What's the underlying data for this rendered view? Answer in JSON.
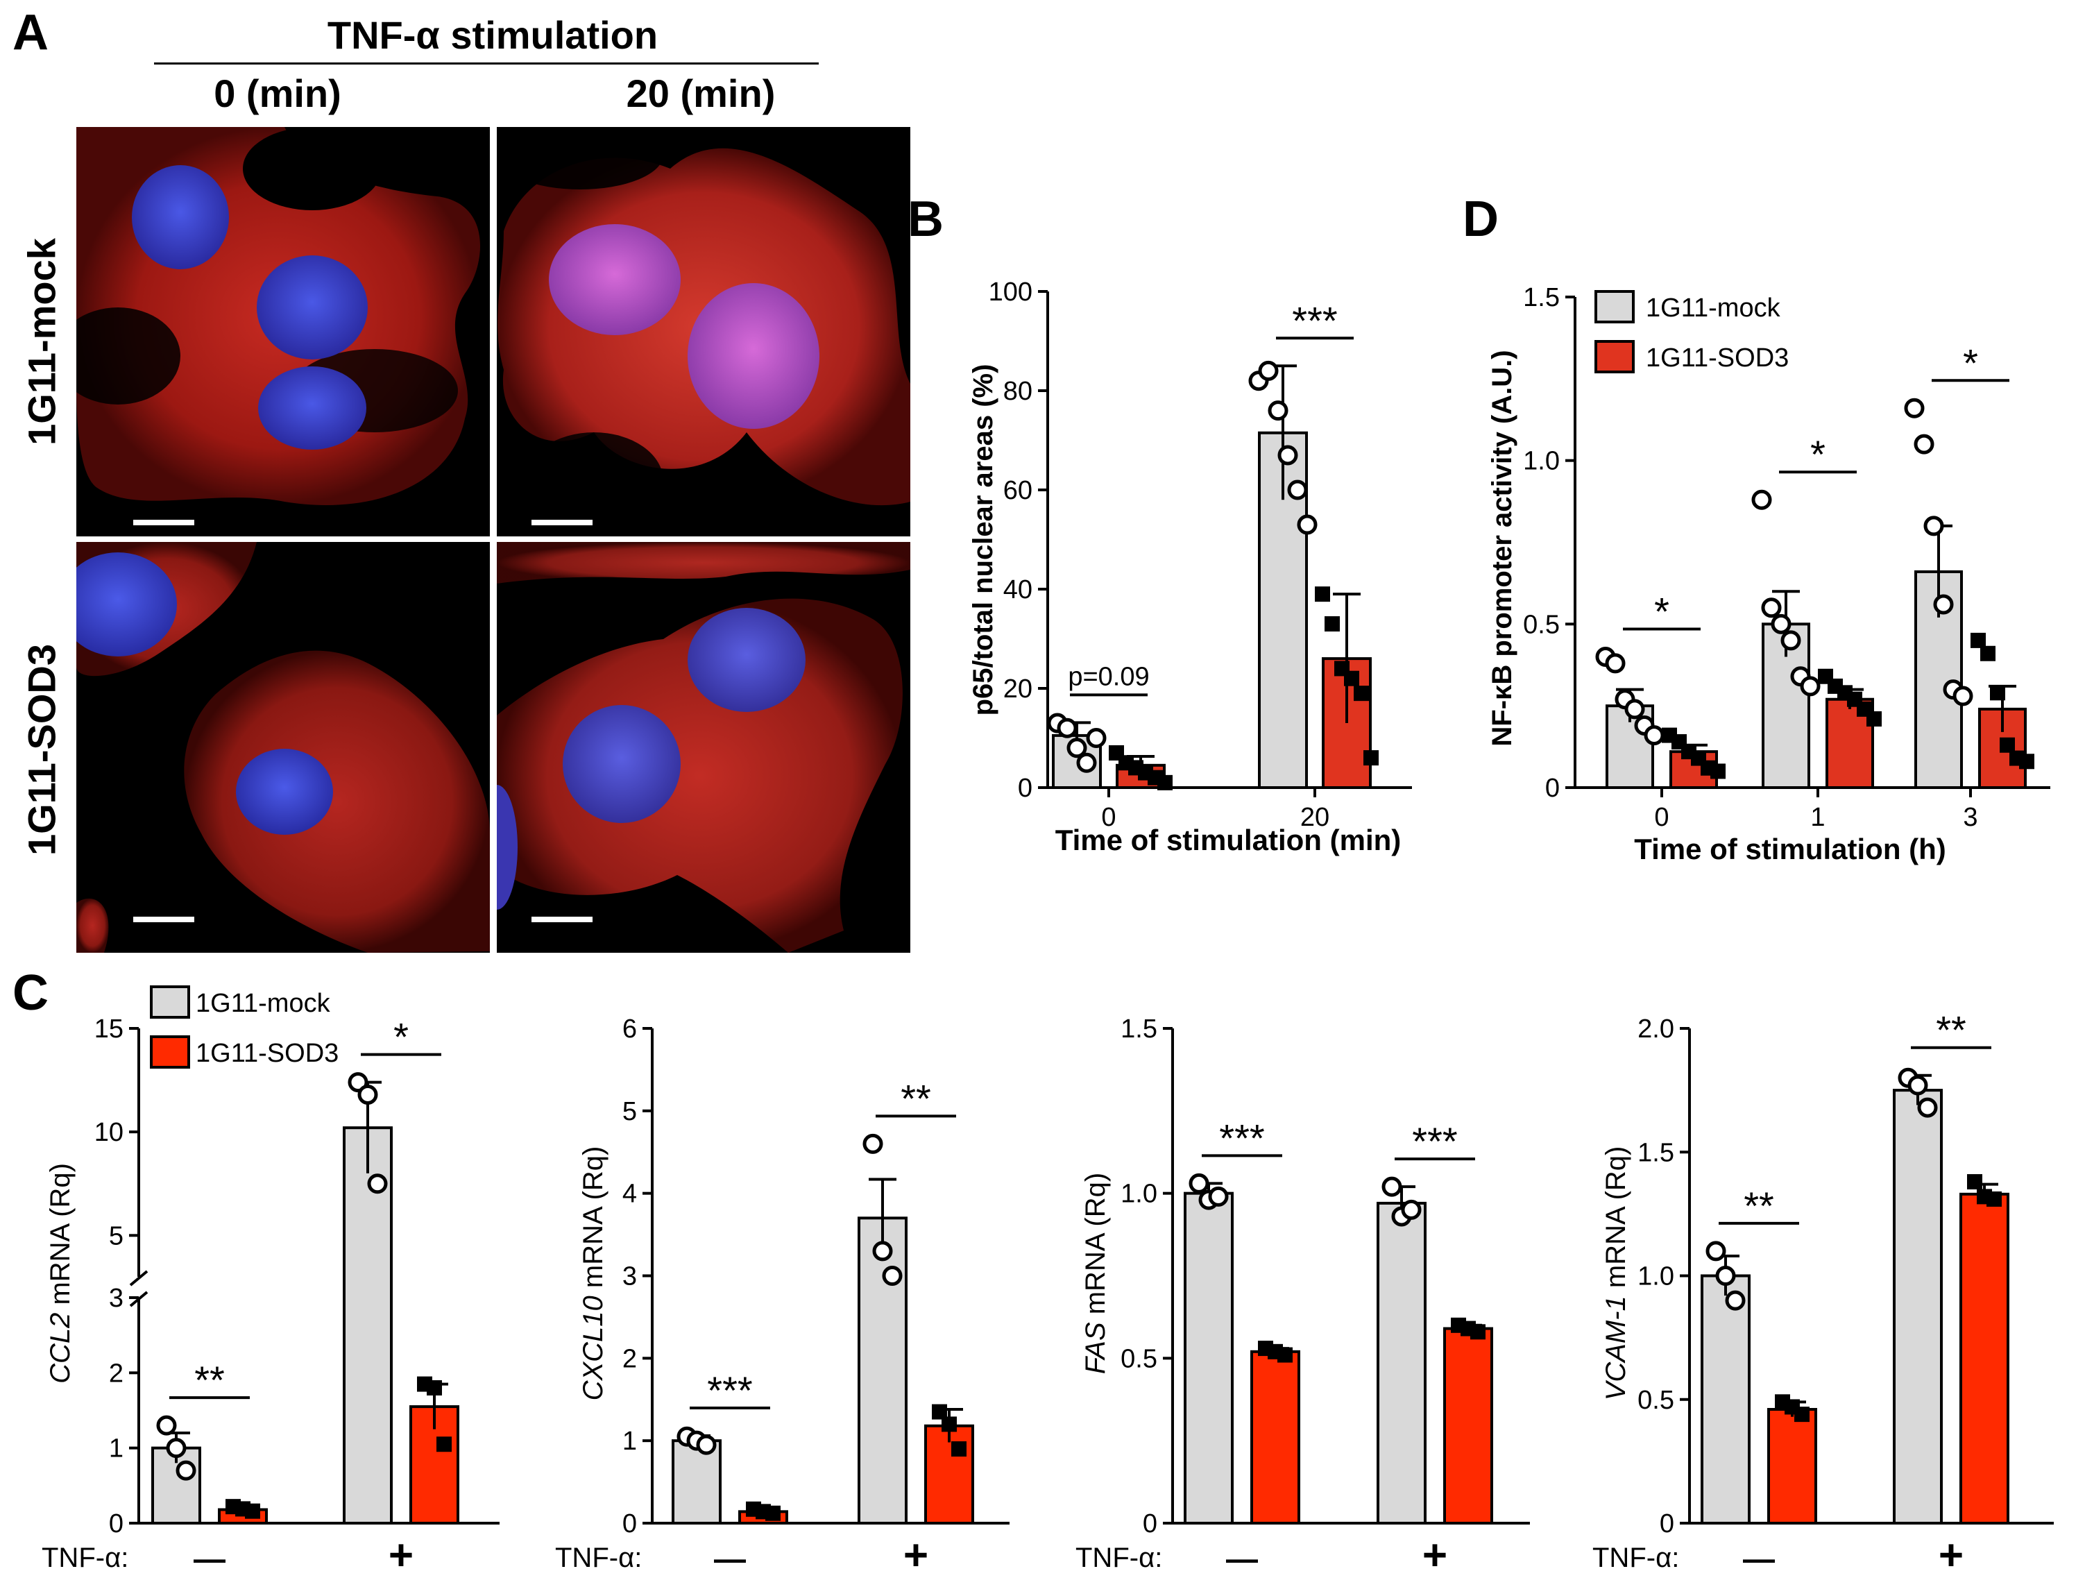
{
  "panel_a": {
    "letter": "A",
    "stim_header": "TNF-α stimulation",
    "col0": "0 (min)",
    "col20": "20 (min)",
    "row_mock": "1G11-mock",
    "row_sod3": "1G11-SOD3",
    "colors": {
      "cytoplasm": "#c0201c",
      "nucleus": "#3a3ec8",
      "background": "#000000"
    }
  },
  "legend": {
    "mock": "1G11-mock",
    "sod3": "1G11-SOD3"
  },
  "colors": {
    "mock": "#d9d9d9",
    "sod3_b": "#e0341f",
    "sod3": "#ff2a00"
  },
  "chart_data": [
    {
      "id": "B",
      "letter": "B",
      "type": "bar",
      "ylabel": "p65/total nuclear areas (%)",
      "xlabel": "Time of stimulation (min)",
      "categories": [
        "0",
        "20"
      ],
      "ylim": [
        0,
        100
      ],
      "yticks": [
        "0",
        "20",
        "40",
        "60",
        "80",
        "100"
      ],
      "series": [
        {
          "group": "mock",
          "marker": "circle",
          "values": [
            10.5,
            71.5
          ],
          "err": [
            2.6,
            13.5
          ],
          "points": [
            [
              13,
              12,
              8,
              5,
              10
            ],
            [
              82,
              84,
              76,
              67,
              60,
              53
            ]
          ]
        },
        {
          "group": "sod3",
          "marker": "square",
          "values": [
            4.5,
            26
          ],
          "err": [
            1.8,
            13
          ],
          "points": [
            [
              7,
              5,
              4,
              3,
              2,
              1
            ],
            [
              39,
              33,
              24,
              22,
              19,
              6
            ]
          ]
        }
      ],
      "significance": [
        {
          "label": "p=0.09",
          "category": 0
        },
        {
          "label": "***",
          "category": 1
        }
      ]
    },
    {
      "id": "D",
      "letter": "D",
      "type": "bar",
      "ylabel": "NF-κB promoter activity (A.U.)",
      "xlabel": "Time of stimulation (h)",
      "categories": [
        "0",
        "1",
        "3"
      ],
      "ylim": [
        0,
        1.5
      ],
      "yticks": [
        "0",
        "0.5",
        "1.0",
        "1.5"
      ],
      "legend_position": "top-left",
      "series": [
        {
          "group": "mock",
          "marker": "circle",
          "values": [
            0.25,
            0.5,
            0.66
          ],
          "err": [
            0.05,
            0.1,
            0.14
          ],
          "points": [
            [
              0.4,
              0.38,
              0.27,
              0.24,
              0.19,
              0.16
            ],
            [
              0.88,
              0.55,
              0.5,
              0.45,
              0.34,
              0.31
            ],
            [
              1.16,
              1.05,
              0.8,
              0.56,
              0.3,
              0.28
            ]
          ]
        },
        {
          "group": "sod3",
          "marker": "square",
          "values": [
            0.11,
            0.27,
            0.24
          ],
          "err": [
            0.02,
            0.03,
            0.07
          ],
          "points": [
            [
              0.16,
              0.14,
              0.11,
              0.09,
              0.06,
              0.05
            ],
            [
              0.34,
              0.31,
              0.29,
              0.27,
              0.24,
              0.21
            ],
            [
              0.45,
              0.41,
              0.29,
              0.13,
              0.09,
              0.08
            ]
          ]
        }
      ],
      "significance": [
        {
          "label": "*",
          "category": 0
        },
        {
          "label": "*",
          "category": 1
        },
        {
          "label": "*",
          "category": 2
        }
      ]
    },
    {
      "id": "C1",
      "letter": "C",
      "type": "bar",
      "ylabel_gene": "CCL2",
      "ylabel_rest": " mRNA (Rq)",
      "x_prefix": "TNF-α:",
      "categories": [
        "—",
        "+"
      ],
      "axis_break": true,
      "break_lower": [
        0,
        3
      ],
      "break_upper": [
        3,
        15
      ],
      "yticks_lower": [
        "0",
        "1",
        "2",
        "3"
      ],
      "yticks_upper": [
        "5",
        "10",
        "15"
      ],
      "legend_position": "top-left",
      "series": [
        {
          "group": "mock",
          "marker": "circle",
          "values": [
            1.0,
            10.2
          ],
          "err": [
            0.2,
            2.2
          ],
          "points": [
            [
              1.3,
              1.0,
              0.7
            ],
            [
              12.4,
              11.8,
              7.5
            ]
          ]
        },
        {
          "group": "sod3",
          "marker": "square",
          "values": [
            0.18,
            1.55
          ],
          "err": [
            0.03,
            0.3
          ],
          "points": [
            [
              0.22,
              0.19,
              0.16
            ],
            [
              1.85,
              1.8,
              1.05
            ]
          ]
        }
      ],
      "significance": [
        {
          "label": "**",
          "category": 0
        },
        {
          "label": "*",
          "category": 1
        }
      ]
    },
    {
      "id": "C2",
      "type": "bar",
      "ylabel_gene": "CXCL10",
      "ylabel_rest": " mRNA (Rq)",
      "x_prefix": "TNF-α:",
      "categories": [
        "—",
        "+"
      ],
      "ylim": [
        0,
        6
      ],
      "yticks": [
        "0",
        "1",
        "2",
        "3",
        "4",
        "5",
        "6"
      ],
      "series": [
        {
          "group": "mock",
          "marker": "circle",
          "values": [
            1.0,
            3.7
          ],
          "err": [
            0.06,
            0.47
          ],
          "points": [
            [
              1.05,
              1.0,
              0.95
            ],
            [
              4.6,
              3.3,
              3.0
            ]
          ]
        },
        {
          "group": "sod3",
          "marker": "square",
          "values": [
            0.14,
            1.18
          ],
          "err": [
            0.03,
            0.2
          ],
          "points": [
            [
              0.17,
              0.14,
              0.12
            ],
            [
              1.35,
              1.2,
              0.9
            ]
          ]
        }
      ],
      "significance": [
        {
          "label": "***",
          "category": 0
        },
        {
          "label": "**",
          "category": 1
        }
      ]
    },
    {
      "id": "C3",
      "type": "bar",
      "ylabel_gene": "FAS",
      "ylabel_rest": " mRNA (Rq)",
      "x_prefix": "TNF-α:",
      "categories": [
        "—",
        "+"
      ],
      "ylim": [
        0,
        1.5
      ],
      "yticks": [
        "0",
        "0.5",
        "1.0",
        "1.5"
      ],
      "series": [
        {
          "group": "mock",
          "marker": "circle",
          "values": [
            1.0,
            0.97
          ],
          "err": [
            0.03,
            0.05
          ],
          "points": [
            [
              1.03,
              0.98,
              0.99
            ],
            [
              1.02,
              0.93,
              0.95
            ]
          ]
        },
        {
          "group": "sod3",
          "marker": "square",
          "values": [
            0.52,
            0.59
          ],
          "err": [
            0.01,
            0.01
          ],
          "points": [
            [
              0.53,
              0.52,
              0.51
            ],
            [
              0.6,
              0.59,
              0.58
            ]
          ]
        }
      ],
      "significance": [
        {
          "label": "***",
          "category": 0
        },
        {
          "label": "***",
          "category": 1
        }
      ]
    },
    {
      "id": "C4",
      "type": "bar",
      "ylabel_gene": "VCAM-1",
      "ylabel_rest": " mRNA (Rq)",
      "x_prefix": "TNF-α:",
      "categories": [
        "—",
        "+"
      ],
      "ylim": [
        0,
        2.0
      ],
      "yticks": [
        "0",
        "0.5",
        "1.0",
        "1.5",
        "2.0"
      ],
      "series": [
        {
          "group": "mock",
          "marker": "circle",
          "values": [
            1.0,
            1.75
          ],
          "err": [
            0.08,
            0.06
          ],
          "points": [
            [
              1.1,
              1.0,
              0.9
            ],
            [
              1.8,
              1.77,
              1.68
            ]
          ]
        },
        {
          "group": "sod3",
          "marker": "square",
          "values": [
            0.46,
            1.33
          ],
          "err": [
            0.03,
            0.04
          ],
          "points": [
            [
              0.49,
              0.47,
              0.44
            ],
            [
              1.38,
              1.32,
              1.31
            ]
          ]
        }
      ],
      "significance": [
        {
          "label": "**",
          "category": 0
        },
        {
          "label": "**",
          "category": 1
        }
      ]
    }
  ]
}
